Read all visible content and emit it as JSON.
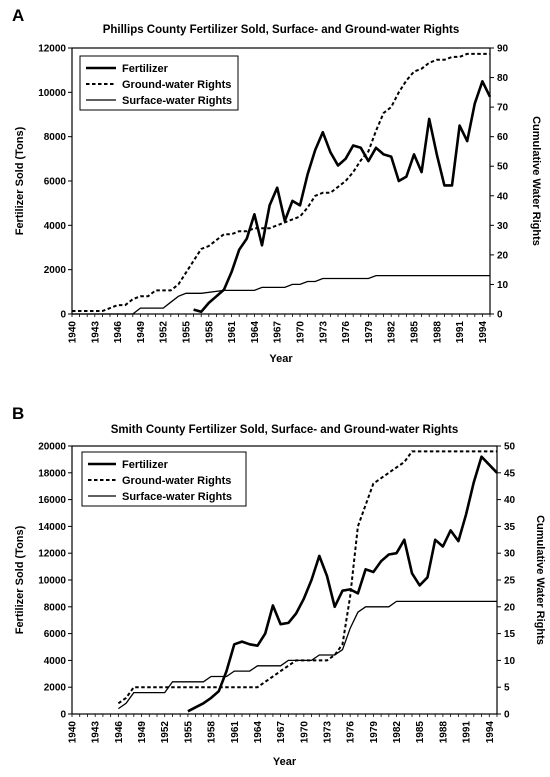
{
  "charts": [
    {
      "panel": "A",
      "chart_data": {
        "type": "line",
        "title": "Phillips County Fertilizer Sold, Surface- and Ground-water Rights",
        "xlabel": "Year",
        "ylabel_left": "Fertilizer Sold (Tons)",
        "ylabel_right": "Cumulative Water Rights",
        "x_ticks": [
          "1940",
          "1943",
          "1946",
          "1949",
          "1952",
          "1955",
          "1958",
          "1961",
          "1964",
          "1967",
          "1970",
          "1973",
          "1976",
          "1979",
          "1982",
          "1985",
          "1988",
          "1991",
          "1994"
        ],
        "xlim": [
          1940,
          1995
        ],
        "ylim_left": [
          0,
          12000
        ],
        "yticks_left": [
          "0",
          "2000",
          "4000",
          "6000",
          "8000",
          "10000",
          "12000"
        ],
        "ylim_right": [
          0,
          90
        ],
        "yticks_right": [
          "0",
          "10",
          "20",
          "30",
          "40",
          "50",
          "60",
          "70",
          "80",
          "90"
        ],
        "legend_position": "top-left",
        "series": [
          {
            "name": "Fertilizer",
            "axis": "left",
            "style": "thick",
            "x": [
              1956,
              1957,
              1958,
              1959,
              1960,
              1961,
              1962,
              1963,
              1964,
              1965,
              1966,
              1967,
              1968,
              1969,
              1970,
              1971,
              1972,
              1973,
              1974,
              1975,
              1976,
              1977,
              1978,
              1979,
              1980,
              1981,
              1982,
              1983,
              1984,
              1985,
              1986,
              1987,
              1988,
              1989,
              1990,
              1991,
              1992,
              1993,
              1994,
              1995
            ],
            "y": [
              200,
              100,
              500,
              800,
              1100,
              1900,
              2900,
              3400,
              4500,
              3100,
              4900,
              5700,
              4200,
              5100,
              4900,
              6300,
              7400,
              8200,
              7300,
              6700,
              7000,
              7600,
              7500,
              6900,
              7500,
              7200,
              7100,
              6000,
              6200,
              7200,
              6400,
              8800,
              7200,
              5800,
              5800,
              8500,
              7800,
              9500,
              10500,
              9800
            ]
          },
          {
            "name": "Ground-water Rights",
            "axis": "right",
            "style": "dashed",
            "x": [
              1940,
              1944,
              1945,
              1946,
              1947,
              1948,
              1949,
              1950,
              1951,
              1952,
              1953,
              1954,
              1955,
              1956,
              1957,
              1958,
              1959,
              1960,
              1961,
              1962,
              1963,
              1964,
              1965,
              1966,
              1967,
              1968,
              1969,
              1970,
              1971,
              1972,
              1973,
              1974,
              1975,
              1976,
              1977,
              1978,
              1979,
              1980,
              1981,
              1982,
              1983,
              1984,
              1985,
              1986,
              1987,
              1988,
              1989,
              1990,
              1991,
              1992,
              1993,
              1994,
              1995
            ],
            "y": [
              1,
              1,
              2,
              3,
              3,
              5,
              6,
              6,
              8,
              8,
              8,
              10,
              14,
              18,
              22,
              23,
              25,
              27,
              27,
              28,
              28,
              29,
              29,
              29,
              30,
              31,
              32,
              33,
              36,
              40,
              41,
              41,
              43,
              45,
              48,
              52,
              55,
              62,
              68,
              70,
              75,
              79,
              82,
              83,
              85,
              86,
              86,
              87,
              87,
              88,
              88,
              88,
              88
            ]
          },
          {
            "name": "Surface-water Rights",
            "axis": "right",
            "style": "thin",
            "x": [
              1940,
              1948,
              1949,
              1952,
              1953,
              1954,
              1955,
              1956,
              1957,
              1960,
              1961,
              1962,
              1963,
              1964,
              1965,
              1966,
              1967,
              1968,
              1969,
              1970,
              1971,
              1972,
              1973,
              1974,
              1979,
              1980,
              1981,
              1982,
              1983,
              1984,
              1985,
              1995
            ],
            "y": [
              0,
              0,
              2,
              2,
              4,
              6,
              7,
              7,
              7,
              8,
              8,
              8,
              8,
              8,
              9,
              9,
              9,
              9,
              10,
              10,
              11,
              11,
              12,
              12,
              12,
              13,
              13,
              13,
              13,
              13,
              13,
              13
            ]
          }
        ]
      }
    },
    {
      "panel": "B",
      "chart_data": {
        "type": "line",
        "title": "Smith County Fertilizer Sold, Surface- and Ground-water Rights",
        "xlabel": "Year",
        "ylabel_left": "Fertilizer Sold (Tons)",
        "ylabel_right": "Cumulative Water Rights",
        "x_ticks": [
          "1940",
          "1943",
          "1946",
          "1949",
          "1952",
          "1955",
          "1958",
          "1961",
          "1964",
          "1967",
          "1970",
          "1973",
          "1976",
          "1979",
          "1982",
          "1985",
          "1988",
          "1991",
          "1994"
        ],
        "xlim": [
          1940,
          1995
        ],
        "ylim_left": [
          0,
          20000
        ],
        "yticks_left": [
          "0",
          "2000",
          "4000",
          "6000",
          "8000",
          "10000",
          "12000",
          "14000",
          "16000",
          "18000",
          "20000"
        ],
        "ylim_right": [
          0,
          50
        ],
        "yticks_right": [
          "0",
          "5",
          "10",
          "15",
          "20",
          "25",
          "30",
          "35",
          "40",
          "45",
          "50"
        ],
        "legend_position": "top-left",
        "series": [
          {
            "name": "Fertilizer",
            "axis": "left",
            "style": "thick",
            "x": [
              1955,
              1956,
              1957,
              1958,
              1959,
              1960,
              1961,
              1962,
              1963,
              1964,
              1965,
              1966,
              1967,
              1968,
              1969,
              1970,
              1971,
              1972,
              1973,
              1974,
              1975,
              1976,
              1977,
              1978,
              1979,
              1980,
              1981,
              1982,
              1983,
              1984,
              1985,
              1986,
              1987,
              1988,
              1989,
              1990,
              1991,
              1992,
              1993,
              1994,
              1995
            ],
            "y": [
              200,
              500,
              800,
              1200,
              1700,
              3200,
              5200,
              5400,
              5200,
              5100,
              6000,
              8100,
              6700,
              6800,
              7500,
              8600,
              10000,
              11800,
              10300,
              8000,
              9200,
              9300,
              9000,
              10800,
              10600,
              11400,
              11900,
              12000,
              13000,
              10500,
              9600,
              10200,
              13000,
              12500,
              13700,
              12900,
              14900,
              17300,
              19200,
              18600,
              18000
            ]
          },
          {
            "name": "Ground-water Rights",
            "axis": "right",
            "style": "dashed",
            "x": [
              1946,
              1947,
              1948,
              1955,
              1956,
              1957,
              1960,
              1961,
              1962,
              1963,
              1964,
              1965,
              1966,
              1967,
              1968,
              1969,
              1970,
              1971,
              1972,
              1973,
              1974,
              1975,
              1976,
              1977,
              1978,
              1979,
              1980,
              1981,
              1982,
              1983,
              1984,
              1985,
              1986,
              1987,
              1988,
              1989,
              1990,
              1991,
              1992,
              1993,
              1994,
              1995
            ],
            "y": [
              2,
              3,
              5,
              5,
              5,
              5,
              5,
              5,
              5,
              5,
              5,
              6,
              7,
              8,
              9,
              10,
              10,
              10,
              10,
              10,
              11,
              13,
              22,
              35,
              39,
              43,
              44,
              45,
              46,
              47,
              49,
              49,
              49,
              49,
              49,
              49,
              49,
              49,
              49,
              49,
              49,
              49
            ]
          },
          {
            "name": "Surface-water Rights",
            "axis": "right",
            "style": "thin",
            "x": [
              1946,
              1947,
              1948,
              1949,
              1950,
              1951,
              1952,
              1953,
              1954,
              1955,
              1956,
              1957,
              1958,
              1959,
              1960,
              1961,
              1962,
              1963,
              1964,
              1965,
              1966,
              1967,
              1968,
              1969,
              1970,
              1971,
              1972,
              1973,
              1974,
              1975,
              1976,
              1977,
              1978,
              1979,
              1980,
              1981,
              1982,
              1983,
              1995
            ],
            "y": [
              1,
              2,
              4,
              4,
              4,
              4,
              4,
              6,
              6,
              6,
              6,
              6,
              7,
              7,
              7,
              8,
              8,
              8,
              9,
              9,
              9,
              9,
              10,
              10,
              10,
              10,
              11,
              11,
              11,
              12,
              16,
              19,
              20,
              20,
              20,
              20,
              21,
              21,
              21
            ]
          }
        ]
      }
    }
  ]
}
